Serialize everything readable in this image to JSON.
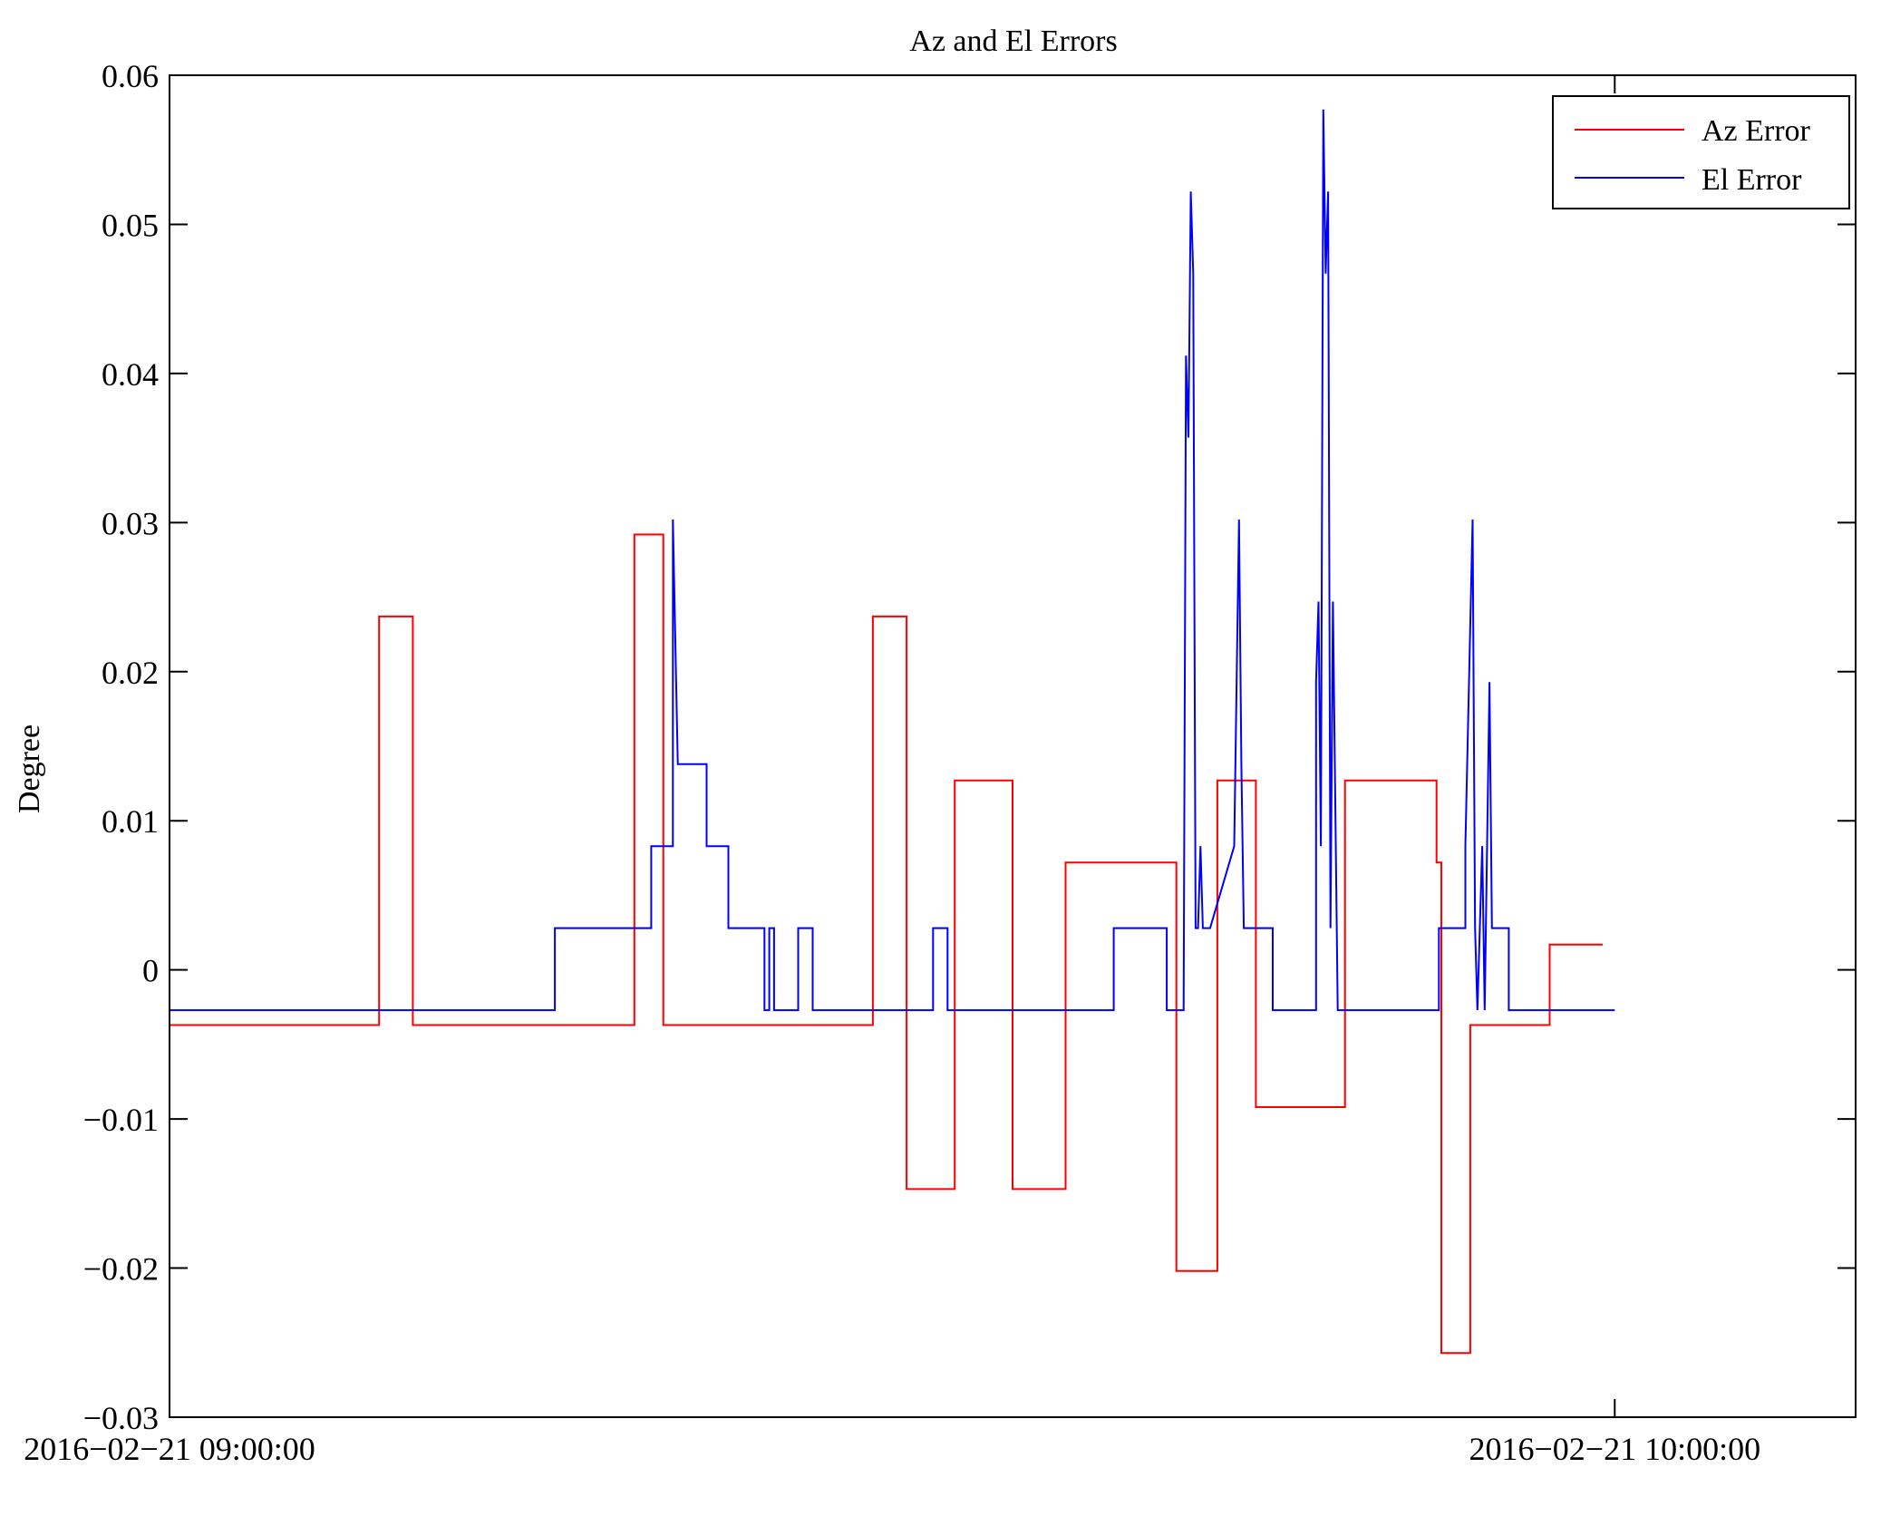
{
  "chart_data": {
    "type": "line",
    "title": "Az and El Errors",
    "xlabel": "",
    "ylabel": "Degree",
    "ylim": [
      -0.03,
      0.06
    ],
    "xlim_minutes": [
      0,
      70
    ],
    "yticks": [
      -0.03,
      -0.02,
      -0.01,
      0,
      0.01,
      0.02,
      0.03,
      0.04,
      0.05,
      0.06
    ],
    "ytick_labels": [
      "−0.03",
      "−0.02",
      "−0.01",
      "0",
      "0.01",
      "0.02",
      "0.03",
      "0.04",
      "0.05",
      "0.06"
    ],
    "xticks": [
      0,
      60
    ],
    "xtick_labels": [
      "2016−02−21 09:00:00",
      "2016−02−21 10:00:00"
    ],
    "grid": false,
    "legend_position": "top-right",
    "series": [
      {
        "name": "Az Error",
        "color": "#ff0000",
        "x": [
          0,
          8.7,
          8.7,
          10.1,
          10.1,
          19.3,
          19.3,
          20.5,
          20.5,
          29.2,
          29.2,
          30.6,
          30.6,
          32.6,
          32.6,
          35.0,
          35.0,
          37.2,
          37.2,
          41.8,
          41.8,
          43.5,
          43.5,
          45.1,
          45.1,
          48.8,
          48.8,
          52.6,
          52.6,
          52.8,
          52.8,
          54.0,
          54.0,
          57.3,
          57.3,
          59.5
        ],
        "y": [
          -0.0037,
          -0.0037,
          0.0237,
          0.0237,
          -0.0037,
          -0.0037,
          0.0292,
          0.0292,
          -0.0037,
          -0.0037,
          0.0237,
          0.0237,
          -0.0147,
          -0.0147,
          0.0127,
          0.0127,
          -0.0147,
          -0.0147,
          0.0072,
          0.0072,
          -0.0202,
          -0.0202,
          0.0127,
          0.0127,
          -0.0092,
          -0.0092,
          0.0127,
          0.0127,
          0.0072,
          0.0072,
          -0.0257,
          -0.0257,
          -0.0037,
          -0.0037,
          0.0017,
          0.0017
        ]
      },
      {
        "name": "El Error",
        "color": "#0000ff",
        "x": [
          0,
          16.0,
          16.0,
          20.0,
          20.0,
          20.9,
          20.9,
          21.1,
          21.2,
          22.3,
          22.3,
          23.2,
          23.2,
          24.7,
          24.7,
          24.9,
          24.9,
          25.1,
          25.1,
          26.1,
          26.1,
          26.7,
          26.7,
          31.7,
          31.7,
          32.3,
          32.3,
          39.2,
          39.2,
          41.4,
          41.4,
          42.1,
          42.2,
          42.3,
          42.4,
          42.5,
          42.6,
          42.7,
          42.8,
          42.9,
          43.2,
          43.2,
          44.2,
          44.2,
          44.4,
          44.5,
          44.6,
          45.8,
          45.8,
          47.6,
          47.6,
          47.7,
          47.8,
          47.9,
          48.0,
          48.1,
          48.2,
          48.3,
          48.5,
          48.5,
          52.7,
          52.7,
          53.8,
          53.8,
          54.1,
          54.2,
          54.3,
          54.5,
          54.6,
          54.8,
          54.9,
          55.0,
          55.6,
          55.6,
          60.0
        ],
        "y": [
          -0.0027,
          -0.0027,
          0.0028,
          0.0028,
          0.0083,
          0.0083,
          0.0302,
          0.0138,
          0.0138,
          0.0138,
          0.0083,
          0.0083,
          0.0028,
          0.0028,
          -0.0027,
          -0.0027,
          0.0028,
          0.0028,
          -0.0027,
          -0.0027,
          0.0028,
          0.0028,
          -0.0027,
          -0.0027,
          0.0028,
          0.0028,
          -0.0027,
          -0.0027,
          0.0028,
          0.0028,
          -0.0027,
          -0.0027,
          0.0412,
          0.0357,
          0.0522,
          0.0467,
          0.0028,
          0.0028,
          0.0083,
          0.0028,
          0.0028,
          0.0028,
          0.0083,
          0.0083,
          0.0302,
          0.0138,
          0.0028,
          0.0028,
          -0.0027,
          -0.0027,
          0.0193,
          0.0247,
          0.0083,
          0.0577,
          0.0467,
          0.0522,
          0.0028,
          0.0247,
          -0.0027,
          -0.0027,
          -0.0027,
          0.0028,
          0.0028,
          0.0083,
          0.0302,
          0.0028,
          -0.0027,
          0.0083,
          -0.0027,
          0.0193,
          0.0028,
          0.0028,
          0.0028,
          -0.0027,
          -0.0027
        ]
      }
    ]
  }
}
